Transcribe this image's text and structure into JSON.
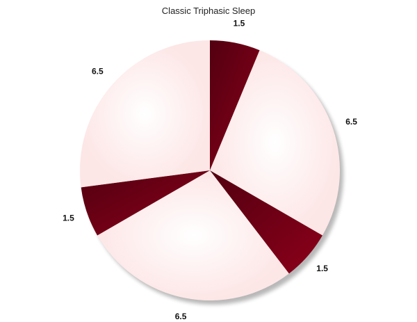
{
  "chart_data": {
    "type": "pie",
    "title": "Classic Triphasic Sleep",
    "values": [
      1.5,
      6.5,
      1.5,
      6.5,
      1.5,
      6.5
    ],
    "labels": [
      "1.5",
      "6.5",
      "1.5",
      "6.5",
      "1.5",
      "6.5"
    ],
    "start": "top",
    "direction": "clockwise",
    "colors": {
      "dark": "#7a0014",
      "light": "#fde8e8"
    },
    "shadow": true,
    "legend": "none"
  }
}
